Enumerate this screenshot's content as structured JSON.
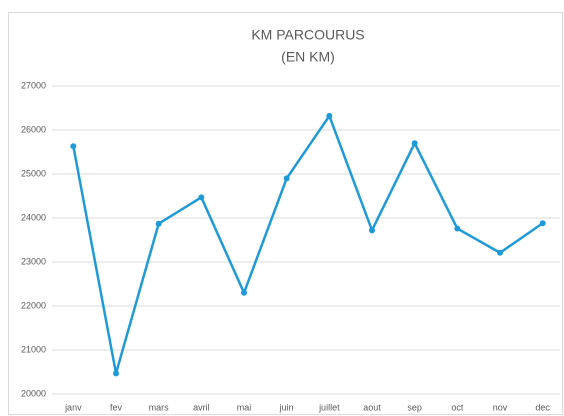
{
  "chart_data": {
    "type": "line",
    "title": "KM PARCOURUS",
    "subtitle": "(EN KM)",
    "categories": [
      "janv",
      "fev",
      "mars",
      "avril",
      "mai",
      "juin",
      "juillet",
      "aout",
      "sep",
      "oct",
      "nov",
      "dec"
    ],
    "series": [
      {
        "name": "KM PARCOURUS",
        "color": "#1f9ad6",
        "values": [
          25630,
          20470,
          23870,
          24470,
          22300,
          24900,
          26320,
          23720,
          25700,
          23760,
          23210,
          23880
        ]
      }
    ],
    "ylim": [
      20000,
      27000
    ],
    "yticks": [
      20000,
      21000,
      22000,
      23000,
      24000,
      25000,
      26000,
      27000
    ],
    "grid": true
  }
}
